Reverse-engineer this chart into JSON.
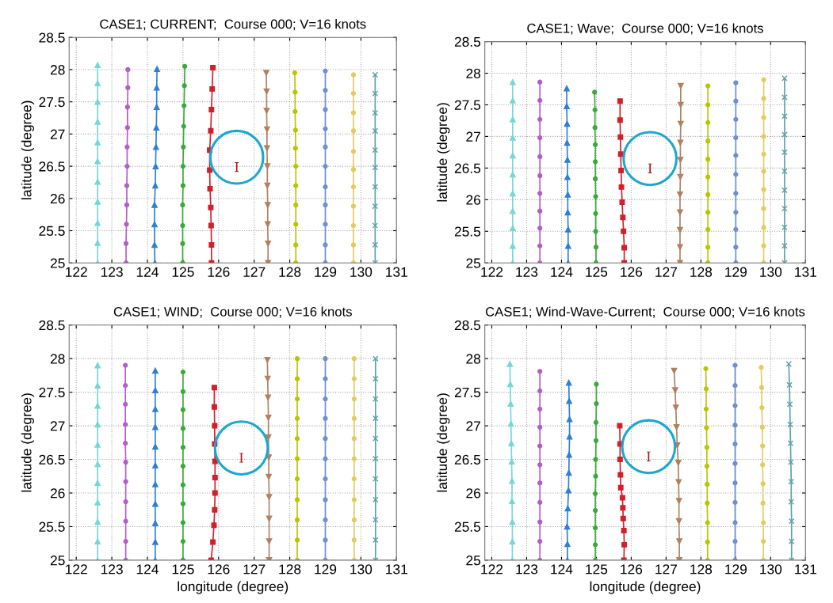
{
  "chart_data": [
    {
      "type": "line",
      "title": "CASE1; CURRENT;  Course 000; V=16 knots",
      "ylabel": "latitude (degree)",
      "xlim": [
        121.8,
        131
      ],
      "ylim": [
        25,
        28.5
      ],
      "xticks": [
        122,
        123,
        124,
        125,
        126,
        127,
        128,
        129,
        130,
        131
      ],
      "yticks": [
        25,
        25.5,
        26,
        26.5,
        27,
        27.5,
        28,
        28.5
      ],
      "grid": true,
      "tick_labels": true,
      "series": [
        {
          "type": "scatter",
          "color": "#1aa8d0",
          "marker": "circle",
          "x": [
            126.51
          ],
          "values": [
            26.64
          ],
          "value_labels": [
            "I"
          ]
        },
        {
          "color": "#76d7d7",
          "marker": "triangle",
          "x": [
            122.6,
            122.6,
            122.6,
            122.6,
            122.6,
            122.6,
            122.6,
            122.6,
            122.6,
            122.6,
            122.6
          ],
          "values": [
            25,
            25.31,
            25.62,
            25.95,
            26.26,
            26.58,
            26.87,
            27.19,
            27.5,
            27.79,
            28.07
          ]
        },
        {
          "color": "#b45cc8",
          "marker": "circle",
          "x": [
            123.4,
            123.4,
            123.41,
            123.42,
            123.42,
            123.43,
            123.43,
            123.44,
            123.44,
            123.45,
            123.45
          ],
          "values": [
            25,
            25.3,
            25.6,
            25.9,
            26.2,
            26.5,
            26.8,
            27.1,
            27.42,
            27.72,
            28.0
          ]
        },
        {
          "color": "#2f7fd6",
          "marker": "triangle",
          "x": [
            124.21,
            124.2,
            124.2,
            124.2,
            124.22,
            124.23,
            124.24,
            124.25,
            124.26,
            124.26,
            124.27
          ],
          "values": [
            25,
            25.28,
            25.6,
            25.9,
            26.2,
            26.5,
            26.8,
            27.1,
            27.42,
            27.72,
            28.01
          ]
        },
        {
          "color": "#3aaa3a",
          "marker": "circle",
          "x": [
            124.99,
            124.99,
            124.99,
            124.99,
            125.0,
            125.0,
            125.01,
            125.02,
            125.03,
            125.04,
            125.05
          ],
          "values": [
            25,
            25.3,
            25.58,
            25.9,
            26.2,
            26.5,
            26.8,
            27.12,
            27.44,
            27.75,
            28.05
          ]
        },
        {
          "color": "#d0202a",
          "marker": "square",
          "x": [
            125.8,
            125.8,
            125.79,
            125.78,
            125.76,
            125.75,
            125.75,
            125.78,
            125.8,
            125.82,
            125.84
          ],
          "values": [
            25,
            25.28,
            25.58,
            25.86,
            26.15,
            26.44,
            26.75,
            27.05,
            27.38,
            27.7,
            28.03
          ]
        },
        {
          "color": "#b08060",
          "marker": "triangle_down",
          "x": [
            127.39,
            127.39,
            127.38,
            127.38,
            127.37,
            127.37,
            127.36,
            127.36,
            127.35,
            127.35,
            127.34
          ],
          "values": [
            25,
            25.3,
            25.6,
            25.9,
            26.2,
            26.5,
            26.78,
            27.07,
            27.36,
            27.66,
            27.95
          ]
        },
        {
          "color": "#bcc400",
          "marker": "circle",
          "x": [
            128.17,
            128.17,
            128.17,
            128.17,
            128.17,
            128.17,
            128.16,
            128.16,
            128.15,
            128.15,
            128.14
          ],
          "values": [
            25,
            25.28,
            25.6,
            25.9,
            26.2,
            26.5,
            26.78,
            27.06,
            27.35,
            27.65,
            27.95
          ]
        },
        {
          "color": "#6f8fd0",
          "marker": "circle",
          "x": [
            129.0,
            129.0,
            129.0,
            129.0,
            129.0,
            129.0,
            129.0,
            129.0,
            129.0,
            129.0,
            129.0
          ],
          "values": [
            25,
            25.28,
            25.6,
            25.9,
            26.18,
            26.5,
            26.8,
            27.08,
            27.38,
            27.68,
            27.98
          ]
        },
        {
          "color": "#e2cc60",
          "marker": "circle",
          "x": [
            129.79,
            129.79,
            129.79,
            129.79,
            129.79,
            129.79,
            129.79,
            129.79,
            129.79,
            129.79,
            129.79
          ],
          "values": [
            25,
            25.28,
            25.58,
            25.88,
            26.18,
            26.45,
            26.73,
            27.05,
            27.33,
            27.63,
            27.92
          ]
        },
        {
          "color": "#5fa0a8",
          "marker": "cross",
          "x": [
            130.4,
            130.4,
            130.4,
            130.4,
            130.4,
            130.4,
            130.4,
            130.4,
            130.4,
            130.4,
            130.4
          ],
          "values": [
            25,
            25.28,
            25.58,
            25.88,
            26.18,
            26.48,
            26.75,
            27.05,
            27.33,
            27.63,
            27.92
          ]
        }
      ]
    },
    {
      "type": "line",
      "title": "CASE1; Wave;  Course 000; V=16 knots",
      "ylabel": "latitude (degree)",
      "xlim": [
        121.8,
        131
      ],
      "ylim": [
        25,
        28.5
      ],
      "xticks": [
        122,
        123,
        124,
        125,
        126,
        127,
        128,
        129,
        130,
        131
      ],
      "yticks": [
        25,
        25.5,
        26,
        26.5,
        27,
        27.5,
        28,
        28.5
      ],
      "grid": true,
      "tick_labels": true,
      "series": [
        {
          "type": "scatter",
          "color": "#1aa8d0",
          "marker": "circle",
          "x": [
            126.54
          ],
          "values": [
            26.65
          ],
          "value_labels": [
            "I"
          ]
        },
        {
          "color": "#76d7d7",
          "marker": "triangle",
          "x": [
            122.6,
            122.6,
            122.6,
            122.6,
            122.6,
            122.6,
            122.6,
            122.6,
            122.6,
            122.6,
            122.6
          ],
          "values": [
            25,
            25.27,
            25.55,
            25.82,
            26.1,
            26.4,
            26.7,
            26.98,
            27.27,
            27.57,
            27.86
          ]
        },
        {
          "color": "#b45cc8",
          "marker": "circle",
          "x": [
            123.38,
            123.38,
            123.38,
            123.38,
            123.38,
            123.38,
            123.38,
            123.38,
            123.38,
            123.38,
            123.38
          ],
          "values": [
            25,
            25.27,
            25.55,
            25.82,
            26.1,
            26.38,
            26.68,
            26.98,
            27.27,
            27.57,
            27.86
          ]
        },
        {
          "color": "#2f7fd6",
          "marker": "triangle",
          "x": [
            124.19,
            124.19,
            124.19,
            124.18,
            124.18,
            124.17,
            124.17,
            124.16,
            124.16,
            124.15,
            124.15
          ],
          "values": [
            25,
            25.27,
            25.53,
            25.8,
            26.08,
            26.36,
            26.63,
            26.9,
            27.2,
            27.48,
            27.76
          ]
        },
        {
          "color": "#3aaa3a",
          "marker": "circle",
          "x": [
            124.99,
            124.99,
            124.98,
            124.98,
            124.98,
            124.97,
            124.97,
            124.97,
            124.96,
            124.96,
            124.95
          ],
          "values": [
            25,
            25.25,
            25.5,
            25.78,
            26.05,
            26.33,
            26.6,
            26.87,
            27.14,
            27.42,
            27.7
          ]
        },
        {
          "color": "#d0202a",
          "marker": "square",
          "x": [
            125.8,
            125.8,
            125.78,
            125.76,
            125.74,
            125.72,
            125.71,
            125.7,
            125.69,
            125.68,
            125.68
          ],
          "values": [
            25,
            25.24,
            25.5,
            25.72,
            25.96,
            26.2,
            26.46,
            26.72,
            26.99,
            27.26,
            27.56
          ]
        },
        {
          "color": "#b08060",
          "marker": "triangle_down",
          "x": [
            127.4,
            127.4,
            127.4,
            127.4,
            127.4,
            127.41,
            127.41,
            127.41,
            127.42,
            127.42,
            127.42
          ],
          "values": [
            25,
            25.25,
            25.52,
            25.8,
            26.08,
            26.36,
            26.63,
            26.9,
            27.2,
            27.5,
            27.8
          ]
        },
        {
          "color": "#bcc400",
          "marker": "circle",
          "x": [
            128.2,
            128.2,
            128.2,
            128.2,
            128.2,
            128.2,
            128.2,
            128.2,
            128.2,
            128.2,
            128.2
          ],
          "values": [
            25,
            25.25,
            25.53,
            25.8,
            26.08,
            26.36,
            26.64,
            26.93,
            27.22,
            27.5,
            27.8
          ]
        },
        {
          "color": "#6f8fd0",
          "marker": "circle",
          "x": [
            129.0,
            129.0,
            129.0,
            129.0,
            129.0,
            129.0,
            129.0,
            129.0,
            129.0,
            129.0,
            129.0
          ],
          "values": [
            25,
            25.25,
            25.53,
            25.8,
            26.1,
            26.4,
            26.7,
            26.98,
            27.27,
            27.56,
            27.85
          ]
        },
        {
          "color": "#e2cc60",
          "marker": "circle",
          "x": [
            129.8,
            129.8,
            129.8,
            129.8,
            129.8,
            129.8,
            129.8,
            129.8,
            129.8,
            129.8,
            129.8
          ],
          "values": [
            25,
            25.27,
            25.56,
            25.86,
            26.16,
            26.45,
            26.72,
            27.0,
            27.3,
            27.6,
            27.9
          ]
        },
        {
          "color": "#5fa0a8",
          "marker": "cross",
          "x": [
            130.4,
            130.4,
            130.4,
            130.4,
            130.4,
            130.4,
            130.4,
            130.4,
            130.4,
            130.4,
            130.4
          ],
          "values": [
            25,
            25.27,
            25.56,
            25.86,
            26.15,
            26.45,
            26.75,
            27.03,
            27.32,
            27.62,
            27.92
          ]
        }
      ]
    },
    {
      "type": "line",
      "title": "CASE1; WIND;  Course 000; V=16 knots",
      "xlabel": "longitude (degree)",
      "ylabel": "latitude (degree)",
      "xlim": [
        121.8,
        131
      ],
      "ylim": [
        25,
        28.5
      ],
      "xticks": [
        122,
        123,
        124,
        125,
        126,
        127,
        128,
        129,
        130,
        131
      ],
      "yticks": [
        25,
        25.5,
        26,
        26.5,
        27,
        27.5,
        28,
        28.5
      ],
      "grid": true,
      "tick_labels": true,
      "series": [
        {
          "type": "scatter",
          "color": "#1aa8d0",
          "marker": "circle",
          "x": [
            126.64
          ],
          "values": [
            26.67
          ],
          "value_labels": [
            "I"
          ]
        },
        {
          "color": "#76d7d7",
          "marker": "triangle",
          "x": [
            122.6,
            122.6,
            122.6,
            122.6,
            122.6,
            122.6,
            122.6,
            122.6,
            122.6,
            122.6,
            122.6
          ],
          "values": [
            25,
            25.28,
            25.57,
            25.86,
            26.15,
            26.43,
            26.72,
            27.02,
            27.3,
            27.6,
            27.9
          ]
        },
        {
          "color": "#b45cc8",
          "marker": "circle",
          "x": [
            123.39,
            123.39,
            123.39,
            123.39,
            123.39,
            123.39,
            123.38,
            123.38,
            123.38,
            123.38,
            123.38
          ],
          "values": [
            25,
            25.28,
            25.58,
            25.87,
            26.17,
            26.46,
            26.74,
            27.02,
            27.32,
            27.6,
            27.9
          ]
        },
        {
          "color": "#2f7fd6",
          "marker": "triangle",
          "x": [
            124.22,
            124.22,
            124.22,
            124.22,
            124.22,
            124.22,
            124.22,
            124.22,
            124.22,
            124.22,
            124.22
          ],
          "values": [
            25,
            25.27,
            25.55,
            25.84,
            26.13,
            26.41,
            26.69,
            26.98,
            27.25,
            27.53,
            27.82
          ]
        },
        {
          "color": "#3aaa3a",
          "marker": "circle",
          "x": [
            125.0,
            125.0,
            125.0,
            125.0,
            125.0,
            125.0,
            125.0,
            125.0,
            125.0,
            125.0,
            125.0
          ],
          "values": [
            25,
            25.28,
            25.56,
            25.84,
            26.12,
            26.4,
            26.68,
            26.96,
            27.24,
            27.51,
            27.8
          ]
        },
        {
          "color": "#d0202a",
          "marker": "square",
          "x": [
            125.79,
            125.84,
            125.87,
            125.89,
            125.9,
            125.9,
            125.9,
            125.89,
            125.89,
            125.88,
            125.88
          ],
          "values": [
            25,
            25.27,
            25.52,
            25.75,
            26.0,
            26.23,
            26.47,
            26.73,
            27.0,
            27.28,
            27.57
          ]
        },
        {
          "color": "#b08060",
          "marker": "triangle_down",
          "x": [
            127.42,
            127.42,
            127.42,
            127.42,
            127.41,
            127.41,
            127.4,
            127.4,
            127.39,
            127.38,
            127.37
          ],
          "values": [
            25,
            25.28,
            25.62,
            25.94,
            26.24,
            26.53,
            26.83,
            27.12,
            27.42,
            27.7,
            27.98
          ]
        },
        {
          "color": "#bcc400",
          "marker": "circle",
          "x": [
            128.21,
            128.21,
            128.21,
            128.21,
            128.21,
            128.21,
            128.21,
            128.21,
            128.21,
            128.21,
            128.21
          ],
          "values": [
            25,
            25.3,
            25.6,
            25.9,
            26.21,
            26.51,
            26.81,
            27.11,
            27.4,
            27.7,
            28.0
          ]
        },
        {
          "color": "#6f8fd0",
          "marker": "circle",
          "x": [
            129.0,
            129.0,
            129.0,
            129.0,
            129.0,
            129.0,
            129.0,
            129.0,
            129.0,
            129.0,
            129.0
          ],
          "values": [
            25,
            25.3,
            25.6,
            25.9,
            26.21,
            26.51,
            26.81,
            27.11,
            27.4,
            27.7,
            28.0
          ]
        },
        {
          "color": "#e2cc60",
          "marker": "circle",
          "x": [
            129.81,
            129.81,
            129.81,
            129.81,
            129.81,
            129.81,
            129.81,
            129.81,
            129.81,
            129.81,
            129.81
          ],
          "values": [
            25,
            25.3,
            25.6,
            25.9,
            26.21,
            26.51,
            26.81,
            27.11,
            27.4,
            27.7,
            28.0
          ]
        },
        {
          "color": "#5fa0a8",
          "marker": "cross",
          "x": [
            130.41,
            130.41,
            130.41,
            130.41,
            130.41,
            130.41,
            130.41,
            130.41,
            130.41,
            130.41,
            130.41
          ],
          "values": [
            25,
            25.3,
            25.6,
            25.9,
            26.21,
            26.51,
            26.81,
            27.11,
            27.4,
            27.7,
            28.0
          ]
        }
      ]
    },
    {
      "type": "line",
      "title": "CASE1; Wind-Wave-Current;  Course 000; V=16 knots",
      "xlabel": "longitude (degree)",
      "ylabel": "latitude (degree)",
      "xlim": [
        121.8,
        131
      ],
      "ylim": [
        25,
        28.5
      ],
      "xticks": [
        122,
        123,
        124,
        125,
        126,
        127,
        128,
        129,
        130,
        131
      ],
      "yticks": [
        25,
        25.5,
        26,
        26.5,
        27,
        27.5,
        28,
        28.5
      ],
      "grid": true,
      "tick_labels": true,
      "series": [
        {
          "type": "scatter",
          "color": "#1aa8d0",
          "marker": "circle",
          "x": [
            126.5
          ],
          "values": [
            26.69
          ],
          "value_labels": [
            "I"
          ]
        },
        {
          "color": "#76d7d7",
          "marker": "triangle",
          "x": [
            122.59,
            122.59,
            122.59,
            122.58,
            122.58,
            122.57,
            122.56,
            122.55,
            122.54,
            122.53,
            122.52
          ],
          "values": [
            25,
            25.28,
            25.57,
            25.88,
            26.18,
            26.47,
            26.74,
            27.03,
            27.33,
            27.62,
            27.92
          ]
        },
        {
          "color": "#b45cc8",
          "marker": "circle",
          "x": [
            123.38,
            123.38,
            123.38,
            123.38,
            123.38,
            123.38,
            123.38,
            123.38,
            123.38,
            123.38,
            123.38
          ],
          "values": [
            25,
            25.28,
            25.57,
            25.86,
            26.15,
            26.42,
            26.7,
            26.98,
            27.25,
            27.52,
            27.81
          ]
        },
        {
          "color": "#2f7fd6",
          "marker": "triangle",
          "x": [
            124.17,
            124.17,
            124.16,
            124.18,
            124.2,
            124.21,
            124.22,
            124.23,
            124.23,
            124.22,
            124.21
          ],
          "values": [
            25,
            25.24,
            25.5,
            25.77,
            26.04,
            26.3,
            26.57,
            26.84,
            27.1,
            27.37,
            27.64
          ]
        },
        {
          "color": "#3aaa3a",
          "marker": "circle",
          "x": [
            124.97,
            124.97,
            124.97,
            124.97,
            124.97,
            124.98,
            124.98,
            124.99,
            124.99,
            125.0,
            125.0
          ],
          "values": [
            25,
            25.23,
            25.48,
            25.74,
            25.99,
            26.25,
            26.5,
            26.78,
            27.05,
            27.33,
            27.62
          ]
        },
        {
          "color": "#d0202a",
          "marker": "square",
          "x": [
            125.79,
            125.8,
            125.79,
            125.77,
            125.76,
            125.75,
            125.7,
            125.69,
            125.68,
            125.68,
            125.67
          ],
          "values": [
            25,
            25.23,
            25.44,
            25.62,
            25.78,
            25.93,
            26.08,
            26.27,
            26.5,
            26.73,
            27.0
          ]
        },
        {
          "color": "#b08060",
          "marker": "triangle_down",
          "x": [
            127.38,
            127.38,
            127.37,
            127.37,
            127.36,
            127.35,
            127.32,
            127.3,
            127.28,
            127.26,
            127.23
          ],
          "values": [
            25,
            25.28,
            25.58,
            25.88,
            26.16,
            26.45,
            26.71,
            26.98,
            27.27,
            27.53,
            27.82
          ]
        },
        {
          "color": "#bcc400",
          "marker": "circle",
          "x": [
            128.19,
            128.19,
            128.19,
            128.18,
            128.18,
            128.17,
            128.17,
            128.16,
            128.15,
            128.15,
            128.14
          ],
          "values": [
            25,
            25.27,
            25.56,
            25.85,
            26.13,
            26.4,
            26.68,
            26.97,
            27.25,
            27.55,
            27.85
          ]
        },
        {
          "color": "#6f8fd0",
          "marker": "circle",
          "x": [
            128.98,
            128.98,
            128.98,
            128.98,
            128.98,
            128.98,
            128.98,
            128.98,
            128.98,
            128.98,
            128.98
          ],
          "values": [
            25,
            25.28,
            25.56,
            25.86,
            26.15,
            26.44,
            26.73,
            27.01,
            27.3,
            27.6,
            27.9
          ]
        },
        {
          "color": "#e2cc60",
          "marker": "circle",
          "x": [
            129.79,
            129.79,
            129.79,
            129.78,
            129.78,
            129.77,
            129.77,
            129.76,
            129.75,
            129.74,
            129.73
          ],
          "values": [
            25,
            25.28,
            25.56,
            25.85,
            26.14,
            26.42,
            26.7,
            26.98,
            27.27,
            27.57,
            27.87
          ]
        },
        {
          "color": "#5fa0a8",
          "marker": "cross",
          "x": [
            130.6,
            130.6,
            130.6,
            130.59,
            130.59,
            130.58,
            130.57,
            130.56,
            130.55,
            130.54,
            130.52
          ],
          "values": [
            25,
            25.28,
            25.58,
            25.87,
            26.17,
            26.46,
            26.74,
            27.02,
            27.32,
            27.61,
            27.92
          ]
        }
      ]
    }
  ]
}
